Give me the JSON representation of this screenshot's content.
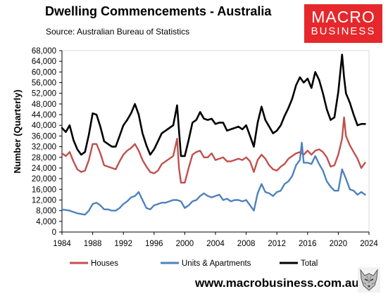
{
  "header": {
    "title": "Dwelling Commencements - Australia",
    "source": "Source:  Australian Bureau of Statistics"
  },
  "logo": {
    "line1": "MACRO",
    "line2": "BUSINESS"
  },
  "footer": {
    "website": "www.macrobusiness.com.au"
  },
  "colors": {
    "houses": "#c0504d",
    "units": "#4f81bd",
    "total": "#000000"
  },
  "icons": {
    "logo_animal": "wolf-icon"
  },
  "chart_data": {
    "type": "line",
    "ylabel": "Number (Quarterly)",
    "xlabel": "",
    "ylim": [
      0,
      68000
    ],
    "yticks": [
      0,
      4000,
      8000,
      12000,
      16000,
      20000,
      24000,
      28000,
      32000,
      36000,
      40000,
      44000,
      48000,
      52000,
      56000,
      60000,
      64000,
      68000
    ],
    "ytick_labels": [
      "0",
      "4,000",
      "8,000",
      "12,000",
      "16,000",
      "20,000",
      "24,000",
      "28,000",
      "32,000",
      "36,000",
      "40,000",
      "44,000",
      "48,000",
      "52,000",
      "56,000",
      "60,000",
      "64,000",
      "68,000"
    ],
    "xlim": [
      1984,
      2024
    ],
    "xticks": [
      1984,
      1988,
      1992,
      1996,
      2000,
      2004,
      2008,
      2012,
      2016,
      2020,
      2024
    ],
    "xtick_labels": [
      "1984",
      "1988",
      "1992",
      "1996",
      "2000",
      "2004",
      "2008",
      "2012",
      "2016",
      "2020",
      "2024"
    ],
    "grid": false,
    "legend_position": "bottom",
    "series": [
      {
        "name": "Houses",
        "x": [
          1984,
          1984.5,
          1985,
          1985.5,
          1986,
          1986.5,
          1987,
          1987.5,
          1988,
          1988.5,
          1989,
          1989.5,
          1990,
          1990.5,
          1991,
          1991.5,
          1992,
          1992.5,
          1993,
          1993.5,
          1994,
          1994.5,
          1995,
          1995.5,
          1996,
          1996.5,
          1997,
          1997.5,
          1998,
          1998.5,
          1999,
          1999.25,
          1999.5,
          2000,
          2000.5,
          2001,
          2001.5,
          2002,
          2002.5,
          2003,
          2003.5,
          2004,
          2004.5,
          2005,
          2005.5,
          2006,
          2006.5,
          2007,
          2007.5,
          2008,
          2008.5,
          2009,
          2009.5,
          2010,
          2010.5,
          2011,
          2011.5,
          2012,
          2012.5,
          2013,
          2013.5,
          2014,
          2014.5,
          2015,
          2015.5,
          2016,
          2016.5,
          2017,
          2017.5,
          2018,
          2018.5,
          2019,
          2019.5,
          2020,
          2020.5,
          2020.75,
          2021,
          2021.5,
          2022,
          2022.5,
          2023,
          2023.5
        ],
        "values": [
          29500,
          28500,
          30000,
          26500,
          23500,
          22500,
          23000,
          27000,
          33000,
          33000,
          29500,
          25000,
          24500,
          24000,
          23500,
          26500,
          29000,
          30500,
          31500,
          33000,
          30500,
          27000,
          24500,
          22500,
          22000,
          23000,
          25500,
          26500,
          27500,
          28500,
          35000,
          24000,
          18500,
          18500,
          24000,
          29000,
          30000,
          30500,
          28000,
          28000,
          29500,
          27000,
          27500,
          28000,
          26500,
          26500,
          27000,
          27500,
          27000,
          28000,
          26500,
          22500,
          27000,
          29000,
          27500,
          25000,
          23500,
          23000,
          24500,
          25500,
          27500,
          28500,
          29500,
          30000,
          29000,
          30500,
          29000,
          30500,
          31000,
          30000,
          28000,
          24500,
          25000,
          29000,
          35000,
          43000,
          36000,
          32500,
          30000,
          27500,
          24000,
          26000
        ]
      },
      {
        "name": "Units & Apartments",
        "x": [
          1984,
          1985,
          1986,
          1987,
          1987.5,
          1988,
          1988.5,
          1989,
          1989.5,
          1990,
          1990.5,
          1991,
          1991.5,
          1992,
          1992.5,
          1993,
          1993.5,
          1994,
          1994.5,
          1995,
          1995.5,
          1996,
          1996.5,
          1997,
          1997.5,
          1998,
          1998.5,
          1999,
          1999.5,
          2000,
          2000.5,
          2001,
          2001.5,
          2002,
          2002.5,
          2003,
          2003.5,
          2004,
          2004.5,
          2005,
          2005.5,
          2006,
          2006.5,
          2007,
          2007.5,
          2008,
          2008.5,
          2009,
          2009.5,
          2010,
          2010.5,
          2011,
          2011.5,
          2012,
          2012.5,
          2013,
          2013.5,
          2014,
          2014.5,
          2015,
          2015.25,
          2015.5,
          2016,
          2016.5,
          2017,
          2017.5,
          2018,
          2018.5,
          2019,
          2019.5,
          2020,
          2020.5,
          2021,
          2021.5,
          2022,
          2022.5,
          2023,
          2023.5
        ],
        "values": [
          8500,
          8000,
          7000,
          6500,
          8000,
          10500,
          11000,
          10000,
          8500,
          8500,
          8000,
          8000,
          9000,
          10500,
          11500,
          13000,
          13500,
          15000,
          12000,
          9000,
          8500,
          10000,
          10500,
          11000,
          11000,
          11500,
          12000,
          12000,
          11500,
          9000,
          10000,
          11500,
          12000,
          13500,
          14500,
          13500,
          13000,
          13500,
          14000,
          12000,
          12500,
          11500,
          12000,
          12000,
          11500,
          12000,
          10000,
          8000,
          14500,
          18000,
          15000,
          14500,
          13500,
          15000,
          15500,
          18000,
          19000,
          21000,
          25000,
          27000,
          33500,
          26000,
          26000,
          25500,
          28500,
          25500,
          23000,
          19000,
          17000,
          15500,
          15500,
          23500,
          20000,
          16000,
          15500,
          14000,
          15000,
          14000
        ]
      },
      {
        "name": "Total",
        "x": [
          1984,
          1984.5,
          1985,
          1985.5,
          1986,
          1986.5,
          1987,
          1987.5,
          1988,
          1988.5,
          1989,
          1989.5,
          1990,
          1990.5,
          1991,
          1991.5,
          1992,
          1992.5,
          1993,
          1993.5,
          1994,
          1994.5,
          1995,
          1995.5,
          1996,
          1996.5,
          1997,
          1997.5,
          1998,
          1998.5,
          1999,
          1999.25,
          1999.5,
          2000,
          2000.5,
          2001,
          2001.5,
          2002,
          2002.5,
          2003,
          2003.5,
          2004,
          2004.5,
          2005,
          2005.5,
          2006,
          2006.5,
          2007,
          2007.5,
          2008,
          2008.5,
          2009,
          2009.5,
          2010,
          2010.5,
          2011,
          2011.5,
          2012,
          2012.5,
          2013,
          2013.5,
          2014,
          2014.5,
          2015,
          2015.5,
          2016,
          2016.5,
          2017,
          2017.5,
          2018,
          2018.5,
          2019,
          2019.5,
          2020,
          2020.5,
          2020.75,
          2021,
          2021.5,
          2022,
          2022.5,
          2023,
          2023.5
        ],
        "values": [
          39000,
          37500,
          40000,
          34500,
          31000,
          29000,
          30000,
          36500,
          44500,
          44000,
          39500,
          34000,
          33000,
          32000,
          32000,
          36000,
          40000,
          42000,
          44500,
          48000,
          44000,
          37000,
          32500,
          29000,
          31000,
          34000,
          37000,
          38000,
          39000,
          40000,
          47500,
          38000,
          28500,
          28500,
          34500,
          41000,
          42000,
          45000,
          42500,
          42000,
          42500,
          40500,
          41000,
          41000,
          38000,
          38500,
          39000,
          39500,
          38500,
          40000,
          36000,
          32000,
          41000,
          47000,
          42000,
          39500,
          37000,
          38000,
          40000,
          43500,
          46500,
          50000,
          55000,
          58000,
          56000,
          57500,
          54000,
          60000,
          57000,
          52000,
          46000,
          42000,
          43000,
          52500,
          66500,
          58000,
          52000,
          48500,
          44000,
          40000,
          40500,
          40500
        ]
      }
    ]
  }
}
